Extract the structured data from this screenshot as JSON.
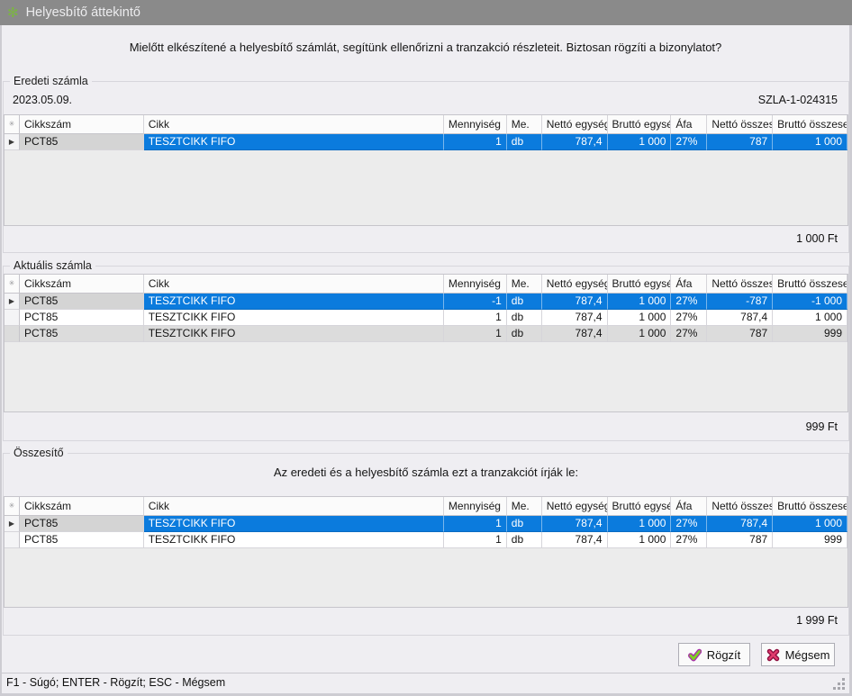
{
  "window": {
    "title": "Helyesbítő áttekintő"
  },
  "message": "Mielőtt elkészítené a helyesbítő számlát, segítünk ellenőrizni a tranzakció részleteit. Biztosan rögzíti a bizonylatot?",
  "columns": [
    "Cikkszám",
    "Cikk",
    "Mennyiség",
    "Me.",
    "Nettó egység",
    "Bruttó egység",
    "Áfa",
    "Nettó összesen",
    "Bruttó összesen"
  ],
  "icons": {
    "titlebar": "green-asterisk-icon",
    "indicator_header": "asterisk-icon",
    "focused_row": "right-arrow-marker",
    "confirm": "green-check-icon",
    "cancel": "red-cross-icon"
  },
  "colors": {
    "selection": "#0b7bdd",
    "titlebar": "#8a8a8a",
    "confirm_icon_green": "#7ed321",
    "confirm_icon_outline": "#a832a8",
    "cancel_icon_red": "#e23c6e",
    "cancel_icon_outline": "#8e1040"
  },
  "sections": [
    {
      "label": "Eredeti számla",
      "date": "2023.05.09.",
      "doc_number": "SZLA-1-024315",
      "total": "1 000 Ft",
      "rows": [
        {
          "state": "selected",
          "cells": [
            "PCT85",
            "TESZTCIKK FIFO",
            "1",
            "db",
            "787,4",
            "1 000",
            "27%",
            "787",
            "1 000"
          ]
        }
      ]
    },
    {
      "label": "Aktuális számla",
      "total": "999 Ft",
      "rows": [
        {
          "state": "selected",
          "cells": [
            "PCT85",
            "TESZTCIKK FIFO",
            "-1",
            "db",
            "787,4",
            "1 000",
            "27%",
            "-787",
            "-1 000"
          ]
        },
        {
          "state": "normal",
          "cells": [
            "PCT85",
            "TESZTCIKK FIFO",
            "1",
            "db",
            "787,4",
            "1 000",
            "27%",
            "787,4",
            "1 000"
          ]
        },
        {
          "state": "alt",
          "cells": [
            "PCT85",
            "TESZTCIKK FIFO",
            "1",
            "db",
            "787,4",
            "1 000",
            "27%",
            "787",
            "999"
          ]
        }
      ]
    },
    {
      "label": "Összesítő",
      "note": "Az eredeti és a helyesbítő számla ezt a tranzakciót írják le:",
      "total": "1 999 Ft",
      "rows": [
        {
          "state": "selected",
          "cells": [
            "PCT85",
            "TESZTCIKK FIFO",
            "1",
            "db",
            "787,4",
            "1 000",
            "27%",
            "787,4",
            "1 000"
          ]
        },
        {
          "state": "normal",
          "cells": [
            "PCT85",
            "TESZTCIKK FIFO",
            "1",
            "db",
            "787,4",
            "1 000",
            "27%",
            "787",
            "999"
          ]
        }
      ]
    }
  ],
  "buttons": {
    "confirm": "Rögzít",
    "cancel": "Mégsem"
  },
  "statusbar": "F1 - Súgó; ENTER - Rögzít; ESC - Mégsem"
}
